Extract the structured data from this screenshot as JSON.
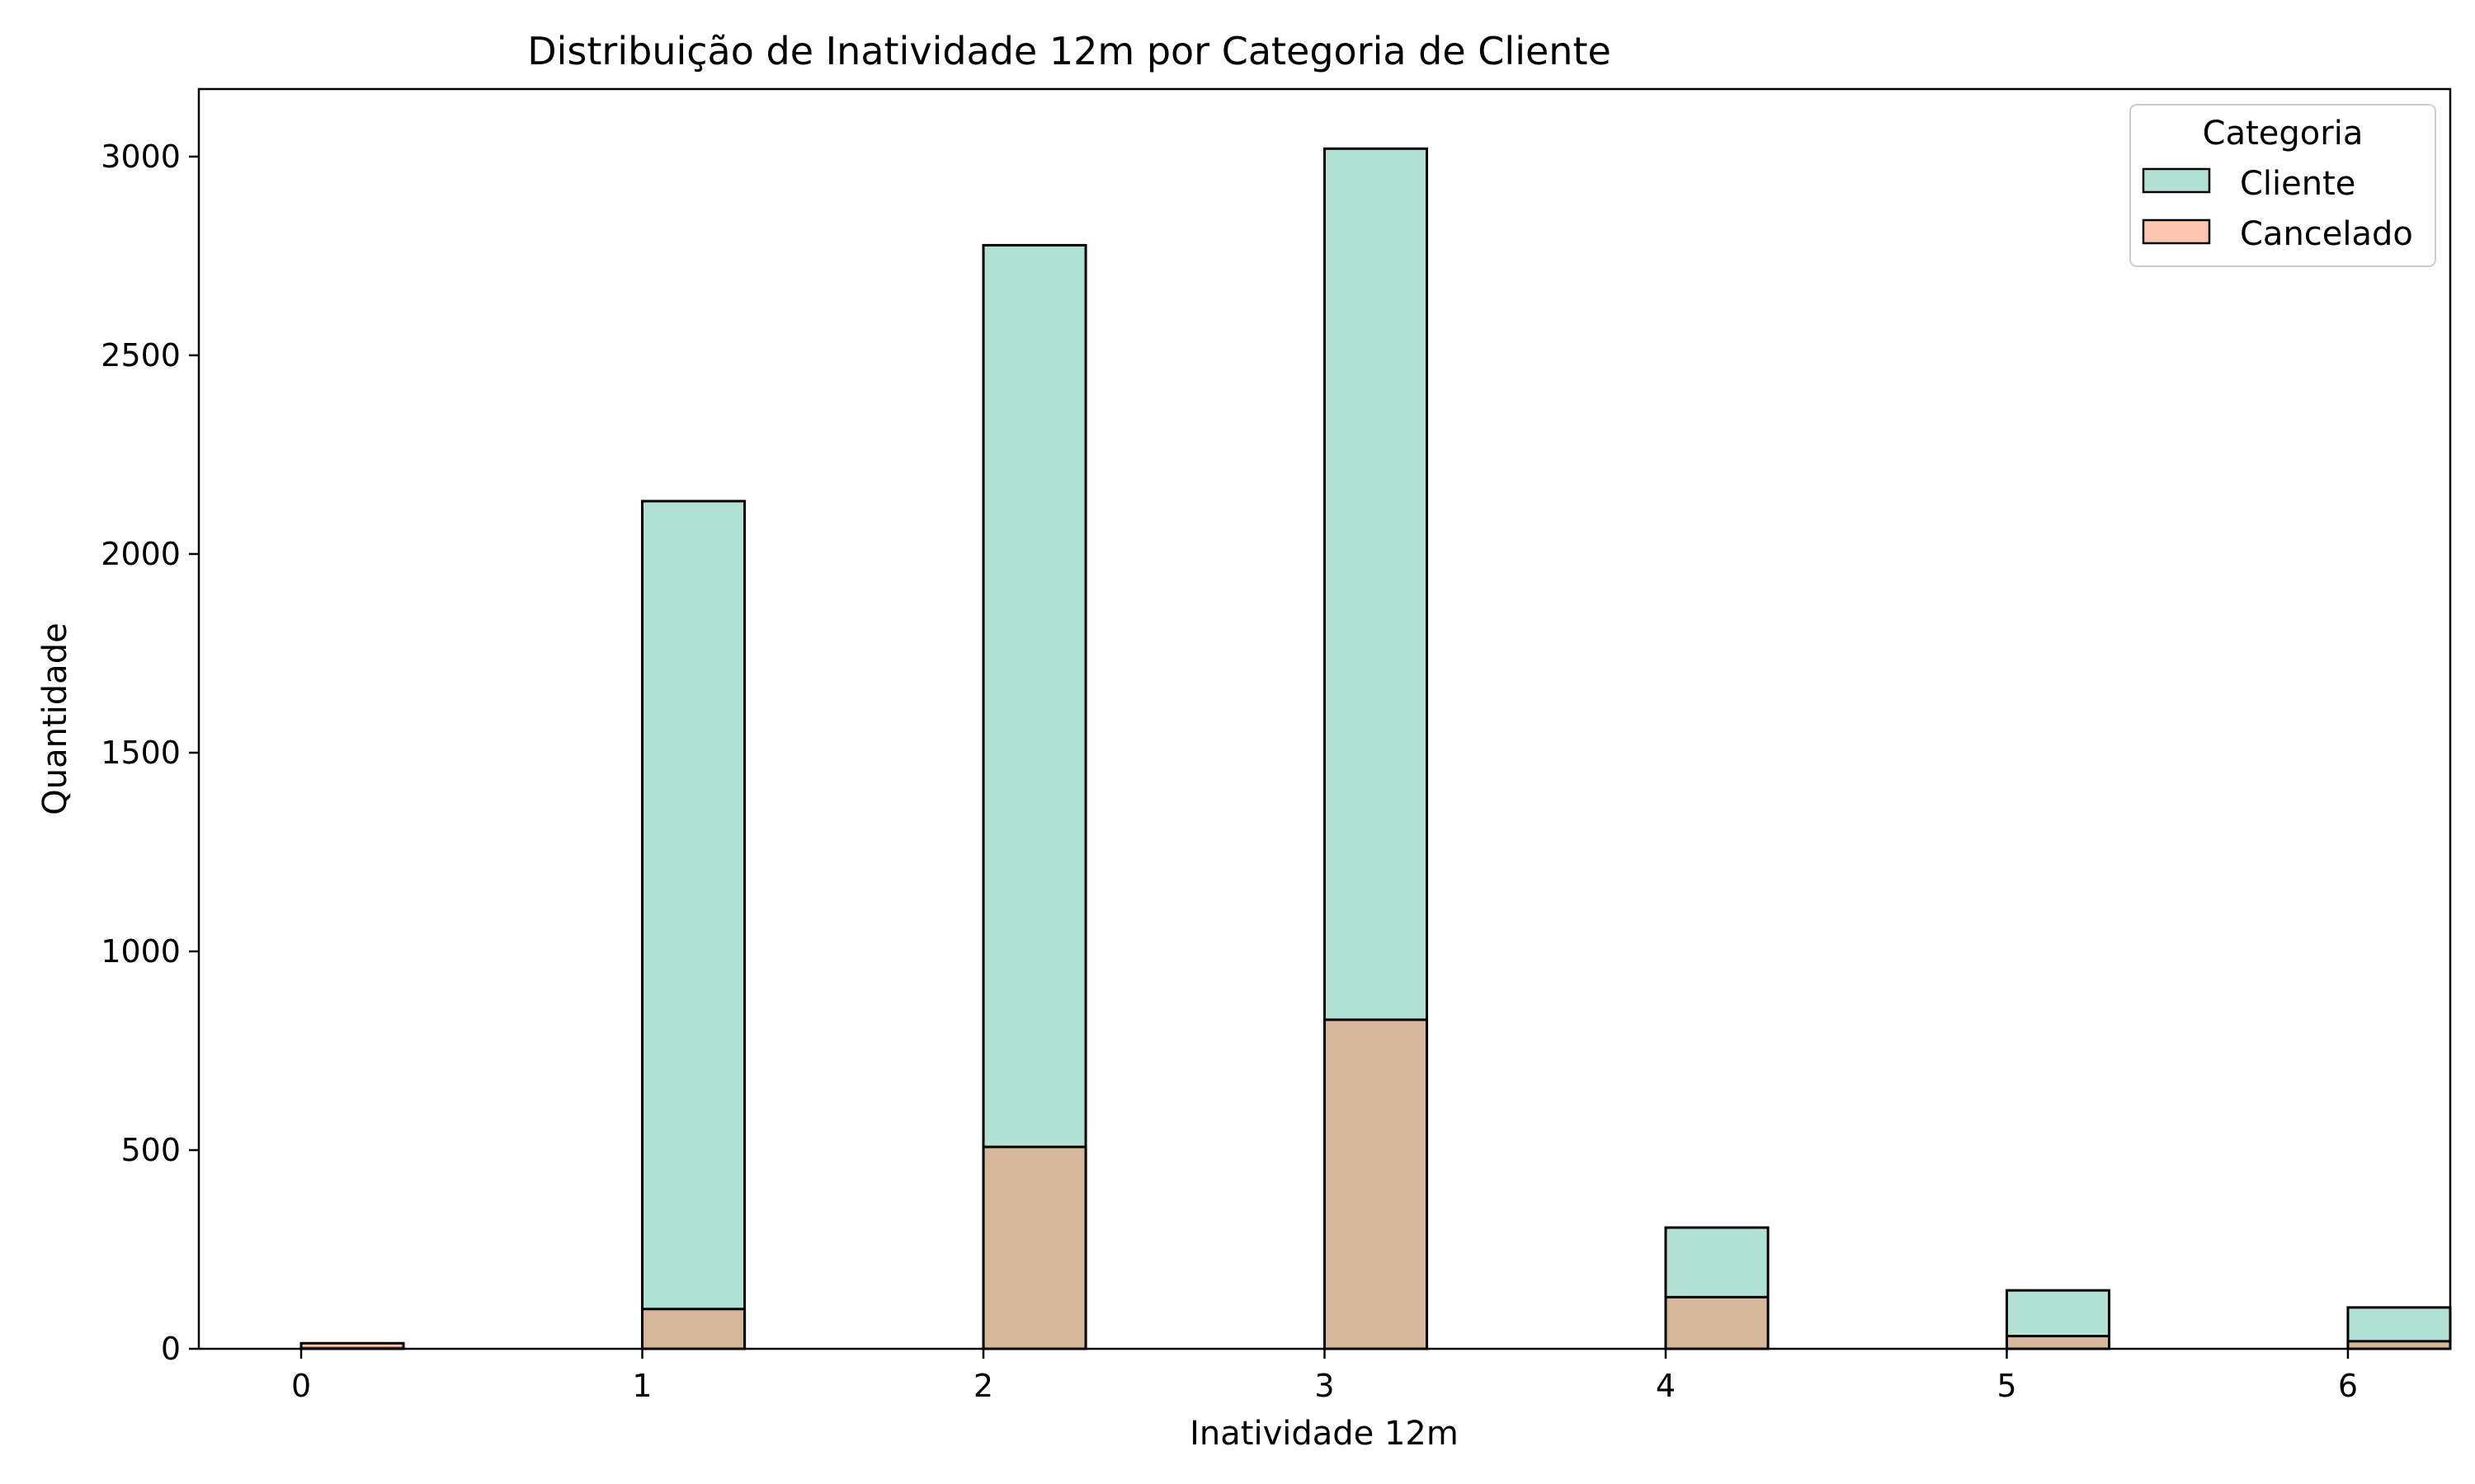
{
  "chart_data": {
    "type": "bar",
    "title": "Distribuição de Inatividade 12m por Categoria de Cliente",
    "xlabel": "Inatividade 12m",
    "ylabel": "Quantidade",
    "xlim": [
      -0.3,
      6.3
    ],
    "ylim": [
      0,
      3170
    ],
    "x_ticks": [
      0,
      1,
      2,
      3,
      4,
      5,
      6
    ],
    "y_ticks": [
      0,
      500,
      1000,
      1500,
      2000,
      2500,
      3000
    ],
    "bin_width": 0.3,
    "grid": false,
    "legend": {
      "title": "Categoria",
      "placement": "top-right",
      "entries": [
        "Cliente",
        "Cancelado"
      ]
    },
    "series": [
      {
        "name": "Cliente",
        "color": "#66c2a5",
        "x": [
          0,
          1,
          2,
          3,
          4,
          5,
          6
        ],
        "values": [
          2,
          2133,
          2777,
          3020,
          305,
          147,
          104
        ]
      },
      {
        "name": "Cancelado",
        "color": "#fc8d62",
        "x": [
          0,
          1,
          2,
          3,
          4,
          5,
          6
        ],
        "values": [
          14,
          100,
          508,
          828,
          130,
          32,
          19
        ]
      }
    ]
  },
  "colors": {
    "cliente": "#66c2a5",
    "cancelado": "#fc8d62",
    "overlap": "#b0bfa8"
  }
}
